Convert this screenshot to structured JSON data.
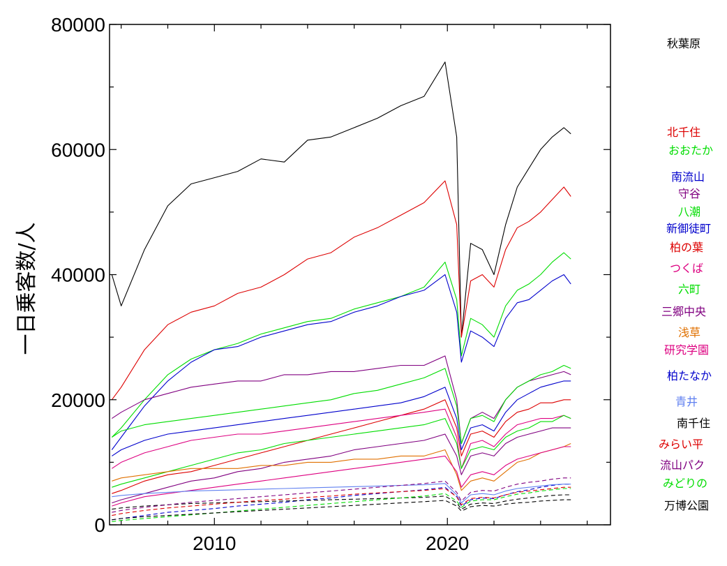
{
  "chart_data": {
    "type": "line",
    "ylabel": "一日乗客数/人",
    "xlim": [
      2005.5,
      2027.0
    ],
    "ylim": [
      0,
      80000
    ],
    "x_ticks": [
      2010,
      2020
    ],
    "y_ticks": [
      0,
      20000,
      40000,
      60000,
      80000
    ],
    "grid": false,
    "legend_position": "right",
    "x": [
      2005.6,
      2006.0,
      2007.0,
      2008.0,
      2009.0,
      2010.0,
      2011.0,
      2012.0,
      2013.0,
      2014.0,
      2015.0,
      2016.0,
      2017.0,
      2018.0,
      2019.0,
      2019.9,
      2020.4,
      2020.6,
      2021.0,
      2021.5,
      2022.0,
      2022.5,
      2023.0,
      2023.5,
      2024.0,
      2024.5,
      2025.0,
      2025.3
    ],
    "series": [
      {
        "name": "秋葉原",
        "color": "#000000",
        "dash": false,
        "values": [
          40000,
          35000,
          44000,
          51000,
          54500,
          55500,
          56500,
          58500,
          58000,
          61500,
          62000,
          63500,
          65000,
          67000,
          68500,
          74000,
          62000,
          30000,
          45000,
          44000,
          40000,
          48000,
          54000,
          57000,
          60000,
          62000,
          63500,
          62500
        ]
      },
      {
        "name": "北千住",
        "color": "#dd0000",
        "dash": false,
        "values": [
          20000,
          22000,
          28000,
          32000,
          34000,
          35000,
          37000,
          38000,
          40000,
          42500,
          43500,
          46000,
          47500,
          49500,
          51500,
          55000,
          48000,
          30000,
          39000,
          40000,
          38000,
          44000,
          47500,
          48500,
          50000,
          52000,
          54000,
          52500
        ]
      },
      {
        "name": "おおたか",
        "color": "#00dd00",
        "dash": false,
        "values": [
          14000,
          15500,
          20000,
          24000,
          26500,
          28000,
          29000,
          30500,
          31500,
          32500,
          33000,
          34500,
          35500,
          36500,
          38000,
          42000,
          36000,
          27000,
          33000,
          32000,
          30000,
          35000,
          37500,
          38500,
          40000,
          42000,
          43500,
          42500
        ]
      },
      {
        "name": "南流山",
        "color": "#0000cc",
        "dash": false,
        "values": [
          12000,
          14000,
          19000,
          23000,
          26000,
          28000,
          28500,
          30000,
          31000,
          32000,
          32500,
          34000,
          35000,
          36500,
          37500,
          40000,
          34000,
          26000,
          31000,
          30000,
          28500,
          33000,
          35500,
          36000,
          37500,
          39000,
          40000,
          38500
        ]
      },
      {
        "name": "守谷",
        "color": "#800080",
        "dash": false,
        "values": [
          17000,
          18000,
          20000,
          21000,
          22000,
          22500,
          23000,
          23000,
          24000,
          24000,
          24500,
          24500,
          25000,
          25500,
          25500,
          27000,
          20000,
          13000,
          17000,
          18000,
          17000,
          20000,
          22000,
          23000,
          23500,
          24000,
          24500,
          24000
        ]
      },
      {
        "name": "八潮",
        "color": "#00dd00",
        "dash": false,
        "values": [
          14000,
          15000,
          16000,
          16500,
          17000,
          17500,
          18000,
          18500,
          19000,
          19500,
          20000,
          21000,
          21500,
          22500,
          23500,
          25000,
          19000,
          13000,
          17000,
          17500,
          16500,
          20000,
          22000,
          23000,
          24000,
          24500,
          25500,
          25000
        ]
      },
      {
        "name": "新御徒町",
        "color": "#0000cc",
        "dash": false,
        "values": [
          11000,
          12000,
          13500,
          14500,
          15000,
          15500,
          16000,
          16500,
          17000,
          17500,
          18000,
          18500,
          19000,
          19500,
          20500,
          22000,
          17000,
          12000,
          15500,
          16000,
          15000,
          18000,
          20000,
          21000,
          22000,
          22500,
          23000,
          23000
        ]
      },
      {
        "name": "柏の葉",
        "color": "#dd0000",
        "dash": false,
        "values": [
          5000,
          5500,
          7000,
          8000,
          8500,
          9500,
          10500,
          11500,
          12500,
          13500,
          14500,
          15500,
          16500,
          17500,
          18500,
          20000,
          15500,
          11000,
          14500,
          15000,
          14000,
          16500,
          18000,
          18500,
          19500,
          19500,
          20000,
          20000
        ]
      },
      {
        "name": "つくば",
        "color": "#dd0080",
        "dash": false,
        "values": [
          9000,
          10000,
          11500,
          12500,
          13500,
          14000,
          14500,
          14500,
          15000,
          15500,
          16000,
          16500,
          17000,
          17500,
          18000,
          18500,
          14000,
          9000,
          13000,
          13500,
          12500,
          14500,
          16000,
          16500,
          17000,
          17000,
          17500,
          17000
        ]
      },
      {
        "name": "六町",
        "color": "#00dd00",
        "dash": false,
        "values": [
          6000,
          6500,
          7500,
          8500,
          9500,
          10500,
          11500,
          12000,
          13000,
          13500,
          14000,
          14500,
          15000,
          15500,
          16000,
          17000,
          13000,
          9000,
          12000,
          12500,
          12000,
          14000,
          15000,
          15500,
          16500,
          16500,
          17500,
          17000
        ]
      },
      {
        "name": "三郷中央",
        "color": "#800080",
        "dash": false,
        "values": [
          3500,
          4000,
          5000,
          6000,
          7000,
          7500,
          8500,
          9000,
          10000,
          10500,
          11000,
          12000,
          12500,
          13000,
          13500,
          14500,
          11000,
          8000,
          11000,
          11500,
          11000,
          13000,
          14000,
          14500,
          15000,
          15500,
          15500,
          15500
        ]
      },
      {
        "name": "浅草",
        "color": "#e07000",
        "dash": false,
        "values": [
          7000,
          7500,
          8000,
          8500,
          9000,
          9000,
          9000,
          9500,
          9500,
          10000,
          10000,
          10500,
          10500,
          11000,
          11000,
          12000,
          8000,
          5500,
          7000,
          7500,
          7000,
          8500,
          10000,
          10500,
          11500,
          12000,
          12500,
          13000
        ]
      },
      {
        "name": "研究学園",
        "color": "#dd0080",
        "dash": false,
        "values": [
          3000,
          3500,
          4500,
          5000,
          5500,
          6000,
          6500,
          7000,
          7500,
          8000,
          8500,
          9000,
          9500,
          10000,
          10500,
          11000,
          8500,
          6000,
          8000,
          8500,
          8000,
          9500,
          10500,
          11000,
          11500,
          12000,
          12500,
          12500
        ]
      },
      {
        "name": "柏たなか",
        "color": "#0000cc",
        "dash": true,
        "values": [
          800,
          1000,
          1500,
          2000,
          2300,
          2600,
          3000,
          3300,
          3600,
          4000,
          4300,
          4700,
          5000,
          5300,
          5600,
          6000,
          4500,
          3000,
          4000,
          4300,
          4200,
          4800,
          5300,
          5600,
          6000,
          6300,
          6500,
          6500
        ]
      },
      {
        "name": "青井",
        "color": "#6080f0",
        "dash": false,
        "values": [
          4500,
          4700,
          5000,
          5200,
          5400,
          5500,
          5600,
          5700,
          5800,
          5900,
          6000,
          6100,
          6200,
          6300,
          6400,
          6600,
          4800,
          3500,
          4800,
          5000,
          4800,
          5400,
          5800,
          6000,
          6200,
          6400,
          6500,
          6500
        ]
      },
      {
        "name": "南千住",
        "color": "#000000",
        "dash": true,
        "values": [
          2500,
          2700,
          3000,
          3200,
          3400,
          3500,
          3600,
          3700,
          3800,
          3900,
          4000,
          4100,
          4200,
          4300,
          4400,
          4600,
          3500,
          2500,
          3300,
          3500,
          3400,
          3800,
          4100,
          4300,
          4500,
          4700,
          4800,
          4800
        ]
      },
      {
        "name": "みらい平",
        "color": "#dd0000",
        "dash": true,
        "values": [
          1500,
          1800,
          2300,
          2700,
          3000,
          3300,
          3600,
          3900,
          4100,
          4400,
          4600,
          4900,
          5100,
          5300,
          5500,
          5800,
          4500,
          3200,
          4200,
          4400,
          4300,
          4800,
          5200,
          5400,
          5600,
          5800,
          6000,
          6000
        ]
      },
      {
        "name": "流山パク",
        "color": "#800080",
        "dash": true,
        "values": [
          2000,
          2300,
          2800,
          3200,
          3600,
          3900,
          4200,
          4500,
          4800,
          5100,
          5400,
          5700,
          6000,
          6300,
          6600,
          7000,
          5200,
          3800,
          5200,
          5500,
          5400,
          6000,
          6500,
          6800,
          7000,
          7300,
          7500,
          7500
        ]
      },
      {
        "name": "みどりの",
        "color": "#00dd00",
        "dash": true,
        "values": [
          500,
          700,
          1000,
          1300,
          1600,
          1900,
          2200,
          2500,
          2800,
          3100,
          3400,
          3700,
          4000,
          4300,
          4600,
          5000,
          3800,
          2800,
          3800,
          4000,
          4000,
          4500,
          4900,
          5100,
          5400,
          5600,
          5800,
          5800
        ]
      },
      {
        "name": "万博公園",
        "color": "#000000",
        "dash": true,
        "values": [
          800,
          1000,
          1300,
          1500,
          1700,
          1900,
          2100,
          2300,
          2500,
          2700,
          2900,
          3100,
          3300,
          3500,
          3700,
          3900,
          3000,
          2200,
          2900,
          3100,
          3000,
          3300,
          3500,
          3600,
          3800,
          3900,
          4000,
          4000
        ]
      }
    ]
  }
}
